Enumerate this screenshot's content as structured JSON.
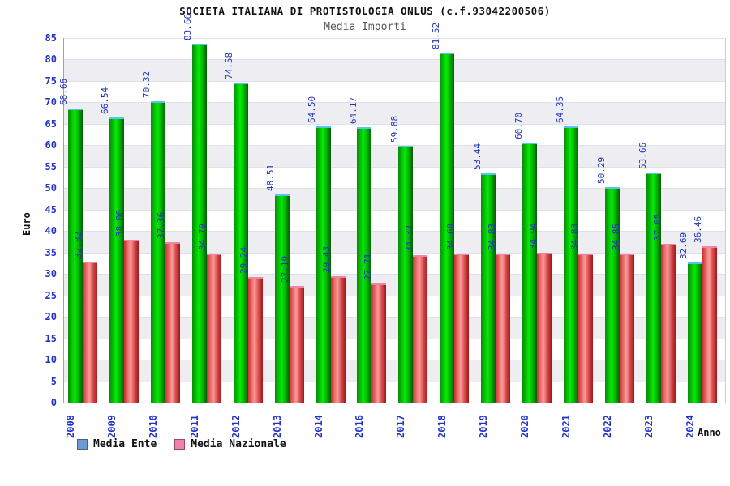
{
  "title": "SOCIETA ITALIANA DI PROTISTOLOGIA ONLUS (c.f.93042200506)",
  "subtitle": "Media Importi",
  "legend": {
    "items": [
      {
        "label": "Media Ente",
        "swatch_color": "#6b9bd2"
      },
      {
        "label": "Media Nazionale",
        "swatch_color": "#ee82a8"
      }
    ],
    "position": "bottom-left"
  },
  "colors": {
    "bar_ente": "#00cc00",
    "bar_nazionale": "#e05050",
    "tick_label": "#2233cc",
    "value_label": "#2233bb",
    "title": "#111111",
    "subtitle": "#555555",
    "stripe": "#ededf2"
  },
  "chart_data": {
    "type": "bar",
    "title": "Media Importi",
    "xlabel": "Anno",
    "ylabel": "Euro",
    "ylim": [
      0,
      85
    ],
    "ytick_step": 5,
    "grid": "horizontal-bands",
    "legend_position": "bottom-left",
    "categories": [
      "2008",
      "2009",
      "2010",
      "2011",
      "2012",
      "2013",
      "2014",
      "2016",
      "2017",
      "2018",
      "2019",
      "2020",
      "2021",
      "2022",
      "2023",
      "2024"
    ],
    "series": [
      {
        "name": "Media Ente",
        "values": [
          68.66,
          66.54,
          70.32,
          83.66,
          74.58,
          48.51,
          64.5,
          64.17,
          59.88,
          81.52,
          53.44,
          60.7,
          64.35,
          50.29,
          53.66,
          32.69
        ]
      },
      {
        "name": "Media Nazionale",
        "values": [
          32.82,
          38.0,
          37.36,
          34.79,
          29.24,
          27.19,
          29.43,
          27.71,
          34.32,
          34.68,
          34.83,
          34.94,
          34.83,
          34.85,
          37.05,
          36.46
        ]
      }
    ]
  }
}
